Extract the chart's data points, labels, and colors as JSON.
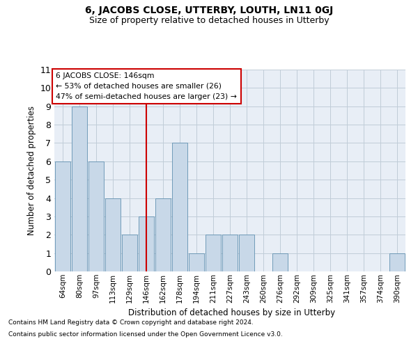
{
  "title1": "6, JACOBS CLOSE, UTTERBY, LOUTH, LN11 0GJ",
  "title2": "Size of property relative to detached houses in Utterby",
  "xlabel": "Distribution of detached houses by size in Utterby",
  "ylabel": "Number of detached properties",
  "categories": [
    "64sqm",
    "80sqm",
    "97sqm",
    "113sqm",
    "129sqm",
    "146sqm",
    "162sqm",
    "178sqm",
    "194sqm",
    "211sqm",
    "227sqm",
    "243sqm",
    "260sqm",
    "276sqm",
    "292sqm",
    "309sqm",
    "325sqm",
    "341sqm",
    "357sqm",
    "374sqm",
    "390sqm"
  ],
  "values": [
    6,
    9,
    6,
    4,
    2,
    3,
    4,
    7,
    1,
    2,
    2,
    2,
    0,
    1,
    0,
    0,
    0,
    0,
    0,
    0,
    1
  ],
  "bar_color": "#c8d8e8",
  "bar_edge_color": "#6090b0",
  "grid_color": "#c0ccd8",
  "background_color": "#ffffff",
  "plot_bg_color": "#e8eef6",
  "vline_x_index": 5,
  "vline_color": "#cc0000",
  "annotation_lines": [
    "6 JACOBS CLOSE: 146sqm",
    "← 53% of detached houses are smaller (26)",
    "47% of semi-detached houses are larger (23) →"
  ],
  "annotation_box_color": "#ffffff",
  "annotation_box_edge": "#cc0000",
  "ylim": [
    0,
    11
  ],
  "yticks": [
    0,
    1,
    2,
    3,
    4,
    5,
    6,
    7,
    8,
    9,
    10,
    11
  ],
  "footnote1": "Contains HM Land Registry data © Crown copyright and database right 2024.",
  "footnote2": "Contains public sector information licensed under the Open Government Licence v3.0."
}
